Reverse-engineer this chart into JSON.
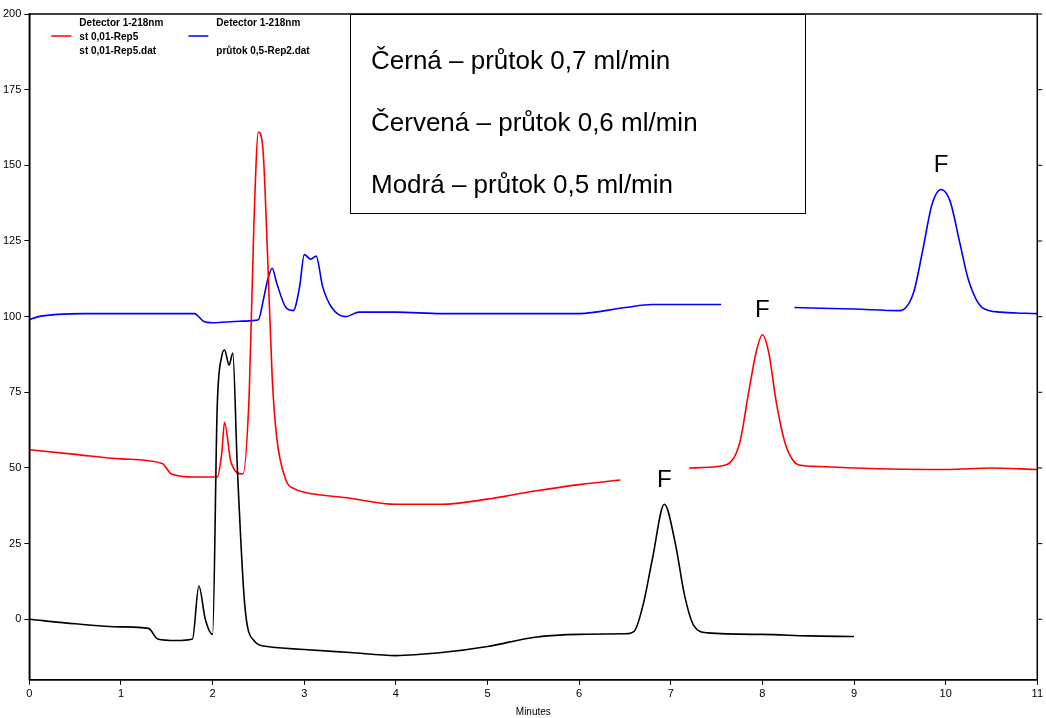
{
  "chart_data": {
    "type": "line",
    "xlabel": "Minutes",
    "xlim": [
      0,
      11
    ],
    "xticks": [
      0,
      1,
      2,
      3,
      4,
      5,
      6,
      7,
      8,
      9,
      10,
      11
    ],
    "ylim": [
      -20,
      200
    ],
    "yticks": [
      0,
      25,
      50,
      75,
      100,
      125,
      150,
      175,
      200
    ],
    "grid": false,
    "legend": "top left",
    "marker": "none",
    "line_style": "solid",
    "annotations": [
      "Černá – průtok 0,7 ml/min",
      "Červená – průtok 0,6 ml/min",
      "Modrá – průtok 0,5 ml/min",
      {
        "text": "F",
        "x": 6.93,
        "y": 38
      },
      {
        "text": "F",
        "x": 8.0,
        "y": 94
      },
      {
        "text": "F",
        "x": 9.95,
        "y": 142
      }
    ],
    "series": [
      {
        "color": "#000000",
        "x": [
          0,
          0.5,
          1.0,
          1.3,
          1.4,
          1.6,
          1.78,
          1.85,
          1.92,
          2.0,
          2.05,
          2.1,
          2.13,
          2.18,
          2.22,
          2.27,
          2.35,
          2.45,
          2.6,
          3.0,
          3.5,
          4.0,
          4.5,
          5.0,
          5.5,
          6.0,
          6.5,
          6.6,
          6.7,
          6.8,
          6.93,
          7.05,
          7.15,
          7.25,
          7.4,
          8.0,
          8.5,
          9.0
        ],
        "values": [
          0,
          -1.5,
          -2.5,
          -3,
          -6.5,
          -7,
          -6.5,
          11,
          0,
          -5,
          70,
          87,
          89,
          84,
          88,
          50,
          5,
          -7,
          -9,
          -10,
          -11,
          -12,
          -11,
          -9,
          -6,
          -5,
          -4.8,
          -4,
          5,
          20,
          38,
          25,
          8,
          -2,
          -4.5,
          -5,
          -5.5,
          -5.7
        ]
      },
      {
        "name": "Detector 1-218nm\nst 0,01-Rep5\nst 0,01-Rep5.dat",
        "color": "#ff0000",
        "x": [
          0,
          0.5,
          1.0,
          1.45,
          1.55,
          1.8,
          2.05,
          2.1,
          2.13,
          2.2,
          2.33,
          2.4,
          2.45,
          2.5,
          2.55,
          2.6,
          2.65,
          2.7,
          2.8,
          2.9,
          3.0,
          3.5,
          4.0,
          4.5,
          5.0,
          5.5,
          6.0,
          6.45,
          6.8,
          7.2,
          7.6,
          7.75,
          7.85,
          7.93,
          8.0,
          8.07,
          8.15,
          8.25,
          8.4,
          8.6,
          9.0,
          10.0,
          10.5,
          11.0
        ],
        "values": [
          56,
          54.5,
          53,
          51.5,
          48,
          47,
          47,
          55,
          65,
          52,
          48,
          75,
          130,
          161,
          155,
          120,
          80,
          60,
          46,
          43,
          42,
          40,
          38,
          38,
          39.7,
          42.3,
          44.5,
          46,
          null,
          50,
          51,
          58,
          75,
          88,
          94,
          88,
          72,
          58,
          51,
          50.5,
          50,
          49.5,
          50,
          49.5
        ]
      },
      {
        "name": "Detector 1-218nm\n\nprůtok 0,5-Rep2.dat",
        "color": "#0000ff",
        "x": [
          0,
          0.1,
          0.6,
          1.8,
          1.9,
          2.0,
          2.3,
          2.5,
          2.55,
          2.6,
          2.65,
          2.7,
          2.8,
          2.88,
          2.95,
          3.0,
          3.07,
          3.13,
          3.2,
          3.3,
          3.45,
          3.6,
          4.0,
          4.5,
          5.0,
          5.5,
          6.0,
          6.5,
          6.8,
          7.55,
          8.0,
          8.35,
          9.0,
          9.5,
          9.65,
          9.75,
          9.85,
          9.95,
          10.05,
          10.15,
          10.25,
          10.4,
          10.6,
          11.0
        ],
        "values": [
          99,
          100,
          101,
          101,
          98.5,
          98,
          98.5,
          99,
          105,
          112,
          116,
          111,
          103,
          102,
          110,
          120.5,
          119,
          120,
          110,
          103,
          100,
          101.5,
          101.5,
          101,
          101,
          101,
          101,
          103,
          104,
          104,
          null,
          103,
          102.5,
          102,
          108,
          122,
          137,
          142,
          138,
          125,
          112,
          103,
          101.5,
          101
        ]
      }
    ]
  }
}
